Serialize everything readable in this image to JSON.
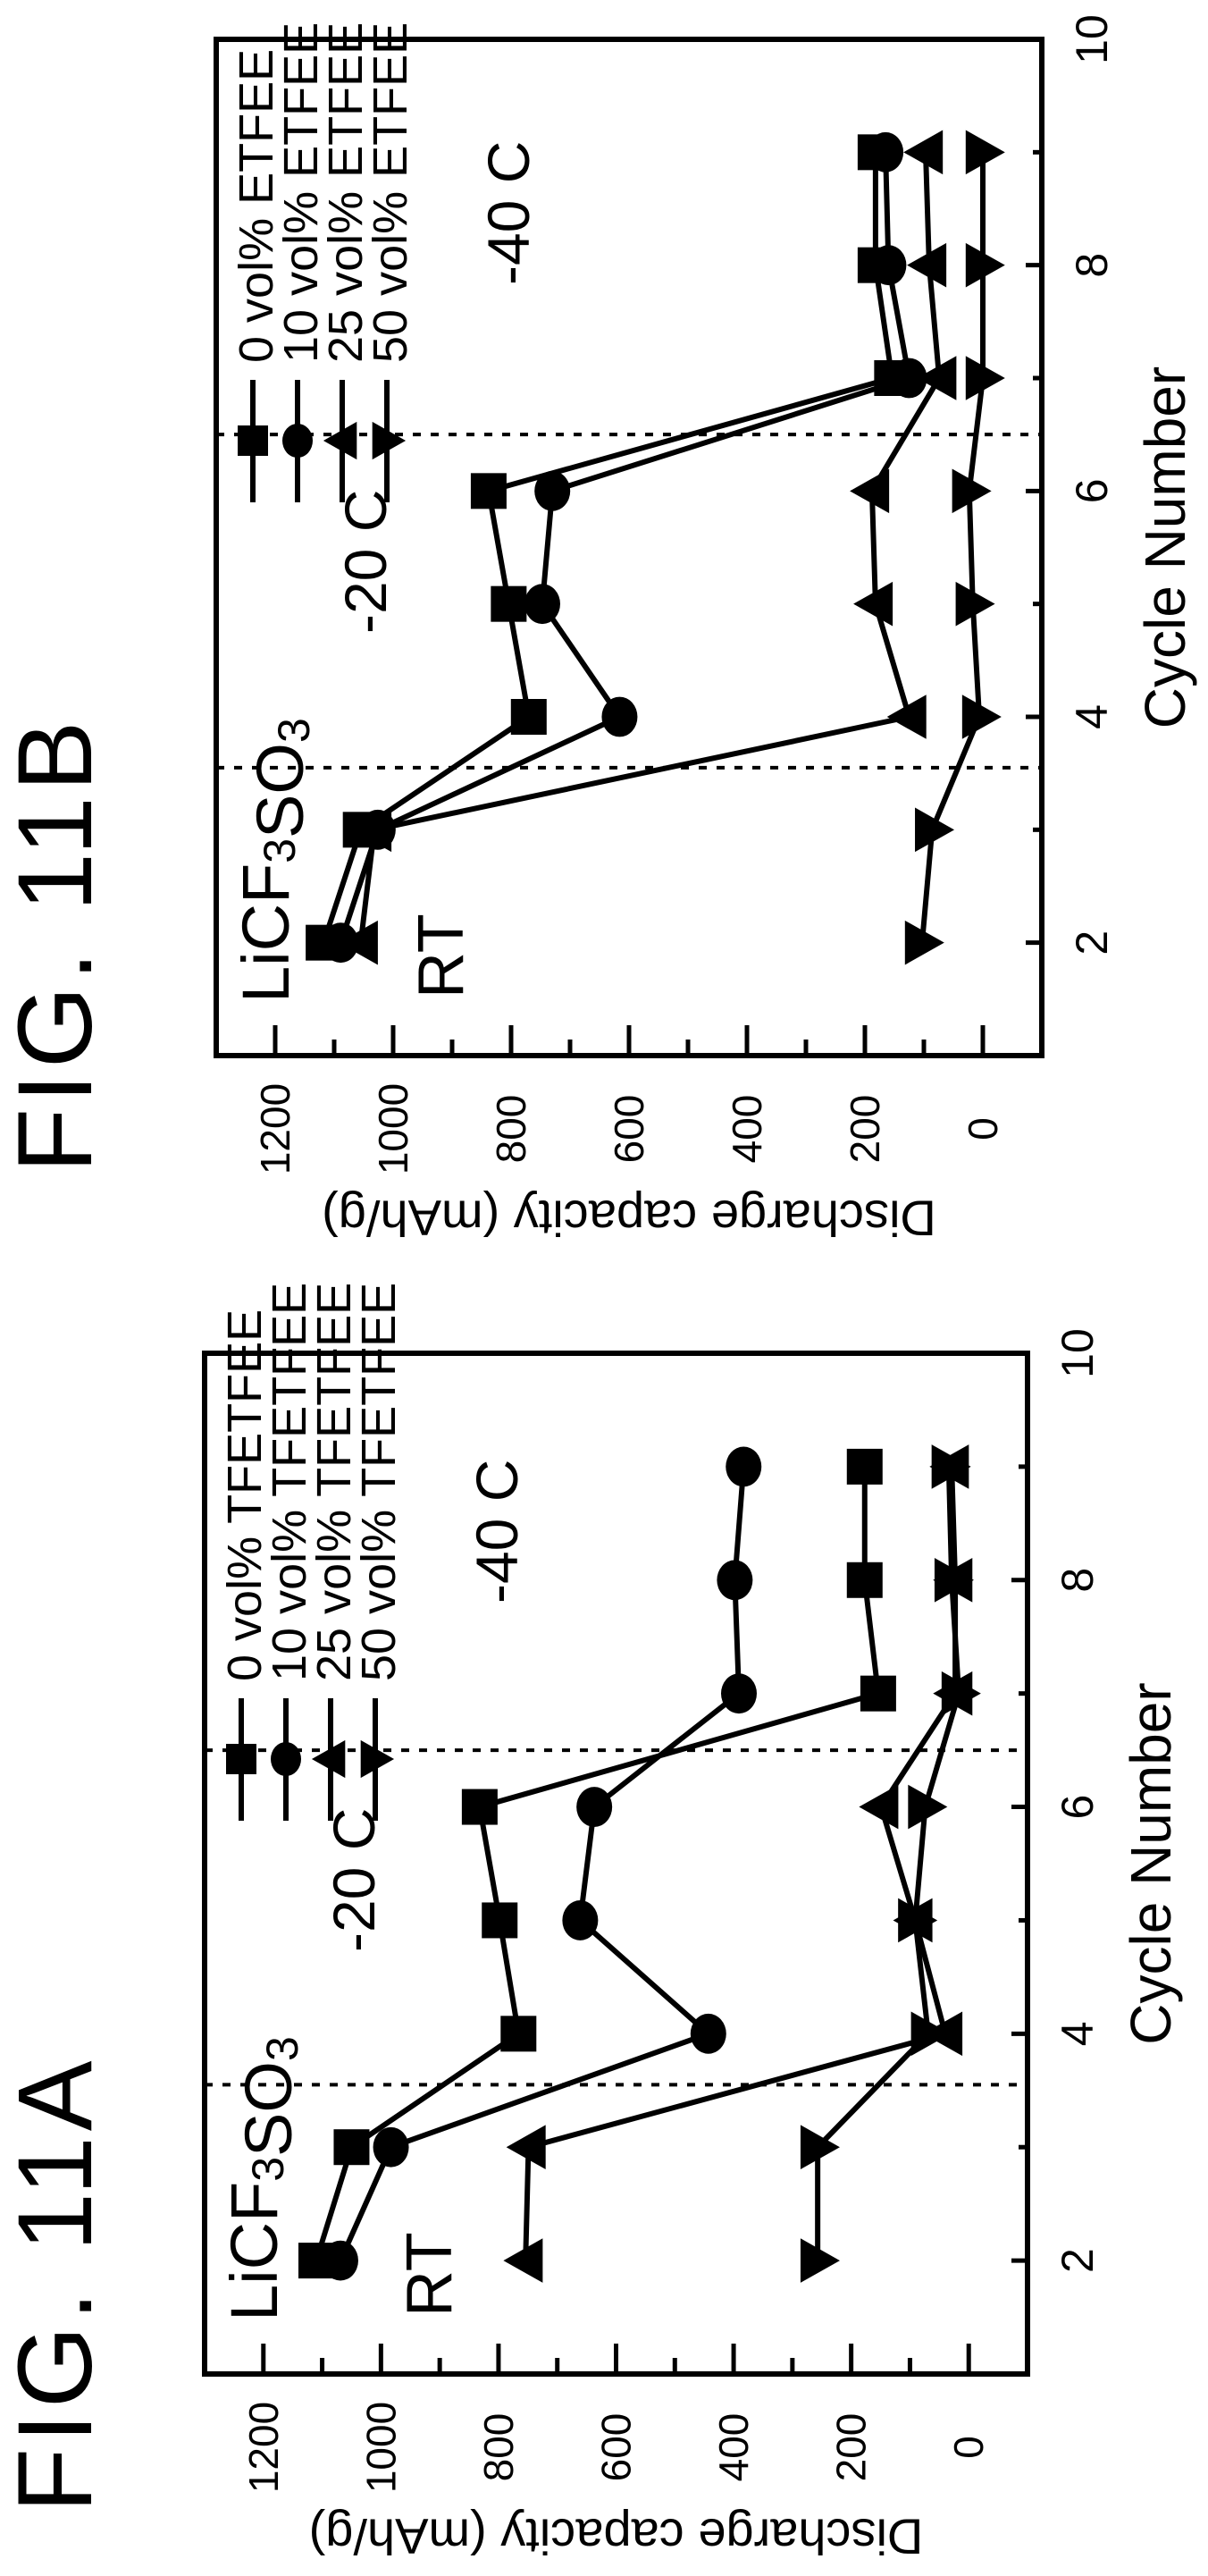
{
  "colors": {
    "ink": "#000000",
    "background": "#ffffff"
  },
  "chart_data": [
    {
      "type": "line",
      "title": "FIG. 11A",
      "xlabel": "Cycle Number",
      "ylabel": "Discharge capacity (mAh/g)",
      "xlim": [
        1,
        10
      ],
      "ylim": [
        -100,
        1300
      ],
      "xticks": [
        2,
        4,
        6,
        8,
        10
      ],
      "yticks": [
        0,
        200,
        400,
        600,
        800,
        1000,
        1200
      ],
      "grid": false,
      "legend_position": "top-left",
      "annotations": {
        "salt": "LiCF3SO3",
        "rt": "RT",
        "minus20": "-20 C",
        "minus40": "-40 C"
      },
      "dividers": [
        3.55,
        6.5
      ],
      "x": [
        2,
        3,
        4,
        5,
        6,
        7,
        8,
        9
      ],
      "series": [
        {
          "name": "0 vol% TFETFEE",
          "marker": "square",
          "values": [
            1110,
            1050,
            766,
            798,
            832,
            154,
            177,
            177
          ]
        },
        {
          "name": "10 vol% TFETFEE",
          "marker": "circle",
          "values": [
            1069,
            983,
            443,
            661,
            637,
            391,
            398,
            383
          ]
        },
        {
          "name": "25 vol% TFETFEE",
          "marker": "triangle-up",
          "values": [
            754,
            749,
            40,
            91,
            149,
            23,
            23,
            29
          ]
        },
        {
          "name": "50 vol% TFETFEE",
          "marker": "triangle-down",
          "values": [
            257,
            257,
            69,
            91,
            74,
            17,
            29,
            34
          ]
        }
      ]
    },
    {
      "type": "line",
      "title": "FIG. 11B",
      "xlabel": "Cycle Number",
      "ylabel": "Discharge capacity (mAh/g)",
      "xlim": [
        1,
        10
      ],
      "ylim": [
        -100,
        1300
      ],
      "xticks": [
        2,
        4,
        6,
        8,
        10
      ],
      "yticks": [
        0,
        200,
        400,
        600,
        800,
        1000,
        1200
      ],
      "grid": false,
      "legend_position": "top-left",
      "annotations": {
        "salt": "LiCF3SO3",
        "rt": "RT",
        "minus20": "-20 C",
        "minus40": "-40 C"
      },
      "dividers": [
        3.55,
        6.5
      ],
      "x": [
        2,
        3,
        4,
        5,
        6,
        7,
        8,
        9
      ],
      "series": [
        {
          "name": "0 vol% ETFEE",
          "marker": "square",
          "values": [
            1118,
            1055,
            770,
            804,
            838,
            154,
            182,
            182
          ]
        },
        {
          "name": "10 vol% ETFEE",
          "marker": "circle",
          "values": [
            1089,
            1026,
            616,
            747,
            730,
            125,
            160,
            165
          ]
        },
        {
          "name": "25 vol% ETFEE",
          "marker": "triangle-up",
          "values": [
            1055,
            1032,
            125,
            182,
            188,
            74,
            91,
            97
          ]
        },
        {
          "name": "50 vol% ETFEE",
          "marker": "triangle-down",
          "values": [
            103,
            86,
            6,
            17,
            23,
            0,
            0,
            0
          ]
        }
      ]
    }
  ]
}
